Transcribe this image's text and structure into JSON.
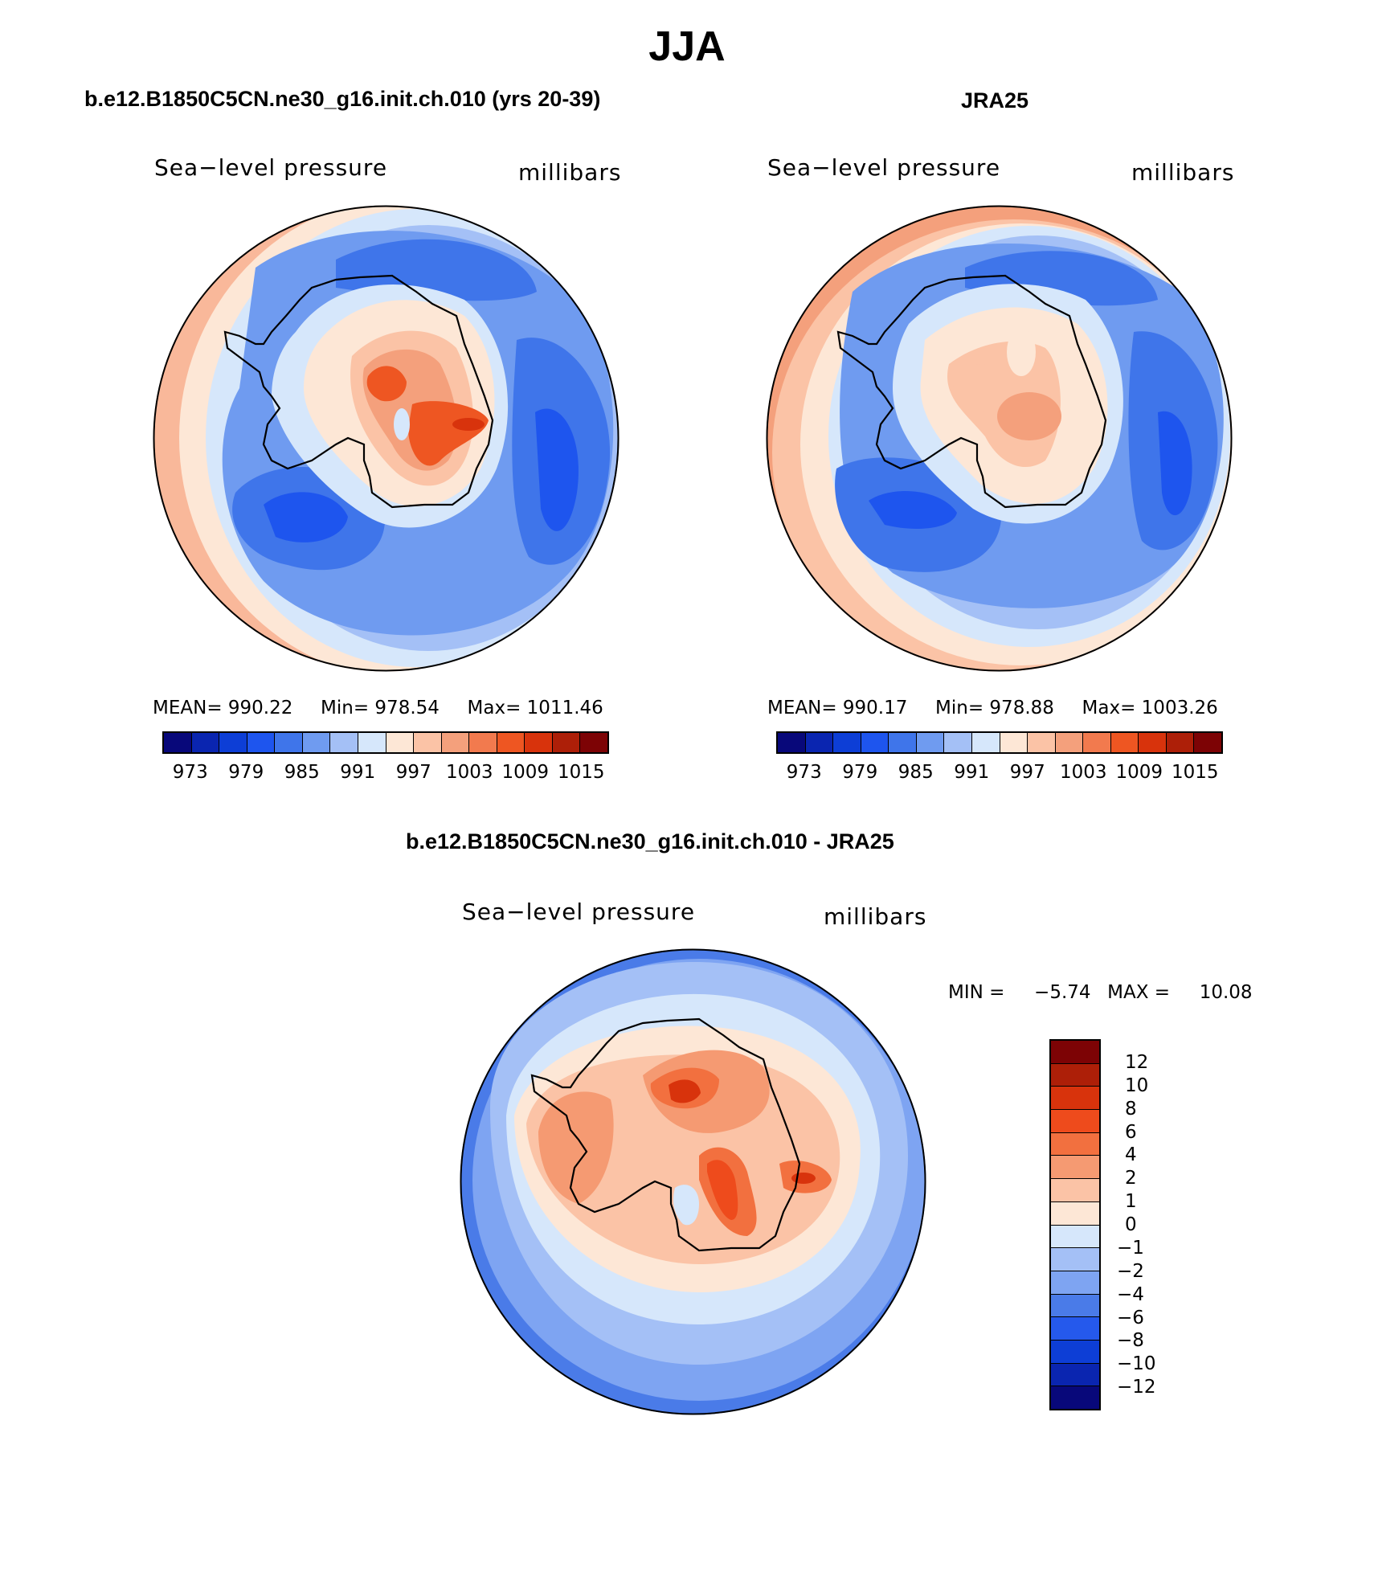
{
  "title": "JJA",
  "panels": [
    {
      "title": "b.e12.B1850C5CN.ne30_g16.init.ch.010 (yrs 20-39)",
      "left_label": "Sea−level pressure",
      "right_label": "millibars",
      "mean_label": "MEAN=",
      "mean": "990.22",
      "min_label": "Min=",
      "min": "978.54",
      "max_label": "Max=",
      "max": "1011.46"
    },
    {
      "title": "JRA25",
      "left_label": "Sea−level pressure",
      "right_label": "millibars",
      "mean_label": "MEAN=",
      "mean": "990.17",
      "min_label": "Min=",
      "min": "978.88",
      "max_label": "Max=",
      "max": "1003.26"
    }
  ],
  "diff_panel": {
    "title": "b.e12.B1850C5CN.ne30_g16.init.ch.010 - JRA25",
    "left_label": "Sea−level pressure",
    "right_label": "millibars",
    "min_label": "MIN =",
    "min": "−5.74",
    "max_label": "MAX =",
    "max": "10.08"
  },
  "colorbar_levels": {
    "colors": [
      "#08087a",
      "#0a25b0",
      "#0d3ed6",
      "#1e55ee",
      "#3f75ea",
      "#6f9bf0",
      "#a4c0f6",
      "#d6e7fb",
      "#fde7d6",
      "#fbc3a6",
      "#f4a07c",
      "#f27a4e",
      "#ee5622",
      "#d8330c",
      "#ad1f08",
      "#7d0305"
    ],
    "tick_labels": [
      "973",
      "979",
      "985",
      "991",
      "997",
      "1003",
      "1009",
      "1015"
    ]
  },
  "diff_colorbar": {
    "colors": [
      "#7d0305",
      "#ad1f08",
      "#d8330c",
      "#ee4b1c",
      "#f2703f",
      "#f59a72",
      "#fbc3a6",
      "#fde7d6",
      "#d6e7fb",
      "#a4c0f6",
      "#7ea4f2",
      "#4a7be8",
      "#2559ec",
      "#0d3ed6",
      "#0a25b0",
      "#08087a"
    ],
    "tick_labels": [
      "12",
      "10",
      "8",
      "6",
      "4",
      "2",
      "1",
      "0",
      "−1",
      "−2",
      "−4",
      "−6",
      "−8",
      "−10",
      "−12"
    ]
  }
}
